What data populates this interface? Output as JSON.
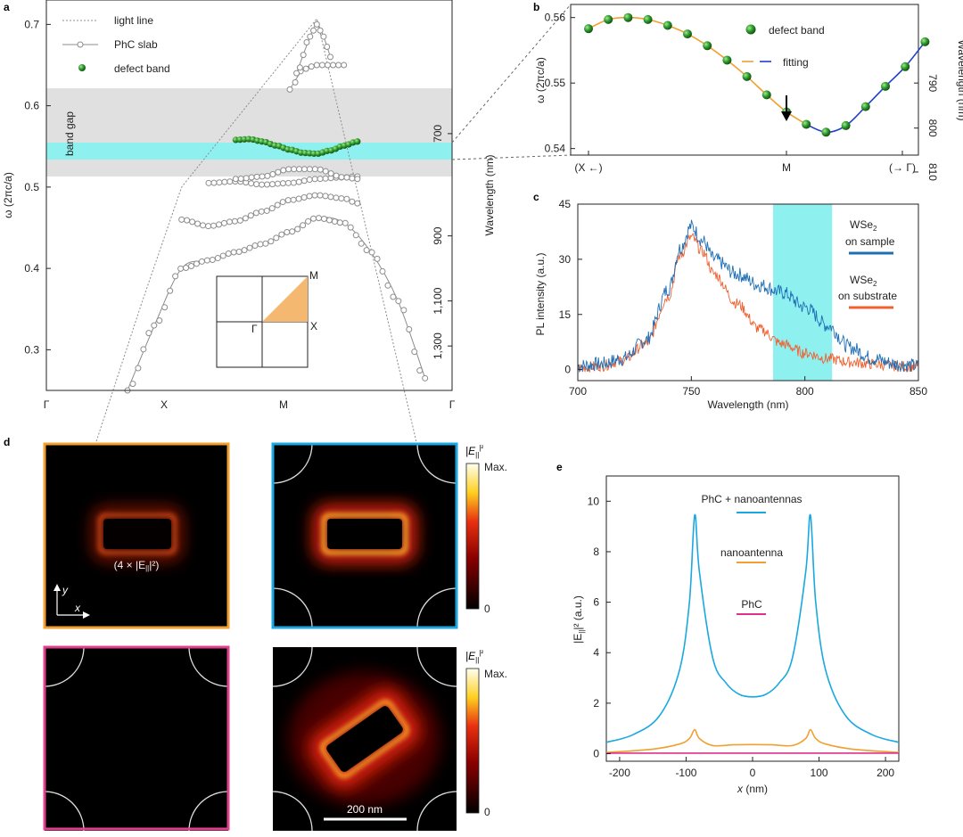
{
  "colors": {
    "gray_curve": "#8c8c8c",
    "defect_green": "#2e8b2e",
    "fit_orange": "#f0a030",
    "fit_blue": "#1f3fc8",
    "cyan_band": "#8ff0f0",
    "gray_band": "#e0e0e0",
    "wse2_sample": "#1f6fb4",
    "wse2_substrate": "#f06030",
    "phc_nano": "#1aa8e0",
    "nano": "#f0a030",
    "phc": "#e0308c",
    "frame_orange": "#f0a030",
    "frame_blue": "#1aa8e0",
    "frame_pink": "#e0408c"
  },
  "panel_a": {
    "letter": "a",
    "legend": [
      "light line",
      "PhC slab",
      "defect band"
    ],
    "band_gap_label": "band gap",
    "ylabel": "ω (2πc/a)",
    "ylabel_right": "Wavelength (nm)",
    "yticks": [
      "0.3",
      "0.4",
      "0.5",
      "0.6",
      "0.7"
    ],
    "yticks_right": [
      "700",
      "900",
      "1,100",
      "1,300"
    ],
    "xticks": [
      "Γ",
      "X",
      "M",
      "Γ"
    ],
    "bz_labels": [
      "M",
      "X",
      "Γ"
    ]
  },
  "panel_b": {
    "letter": "b",
    "legend": [
      "defect band",
      "fitting"
    ],
    "ylabel": "ω (2πc/a)",
    "ylabel_right": "Wavelength (nm)",
    "yticks": [
      "0.54",
      "0.55",
      "0.56"
    ],
    "yticks_right": [
      "790",
      "800",
      "810"
    ],
    "xticks": [
      "(X ←)",
      "M",
      "(→ Γ)"
    ]
  },
  "panel_c": {
    "letter": "c",
    "legend_sample": [
      "WSe",
      "2",
      "on sample"
    ],
    "legend_substrate": [
      "WSe",
      "2",
      "on substrate"
    ],
    "ylabel": "PL intensity (a.u.)",
    "xlabel": "Wavelength (nm)",
    "yticks": [
      "0",
      "15",
      "30",
      "45"
    ],
    "xticks": [
      "700",
      "750",
      "800",
      "850"
    ]
  },
  "panel_d": {
    "letter": "d",
    "annotation": "(4 × |E",
    "annotation_sub": "||",
    "annotation_end": "|²)",
    "axis_y": "y",
    "axis_x": "x",
    "colorbar_title": "|E",
    "colorbar_sub": "||",
    "colorbar_sup": "|²",
    "colorbar_max": "Max.",
    "colorbar_min": "0",
    "scalebar": "200 nm"
  },
  "panel_e": {
    "letter": "e",
    "legend": [
      "PhC + nanoantennas",
      "nanoantenna",
      "PhC"
    ],
    "ylabel_pre": "|E",
    "ylabel_sub": "||",
    "ylabel_post": "|² (a.u.)",
    "xlabel_pre": "x",
    "xlabel_post": " (nm)",
    "yticks": [
      "0",
      "2",
      "4",
      "6",
      "8",
      "10"
    ],
    "xticks": [
      "-200",
      "-100",
      "0",
      "100",
      "200"
    ]
  },
  "chart_data": [
    {
      "panel": "a",
      "type": "line",
      "xlabel": "",
      "ylabel": "ω (2πc/a)",
      "ylim": [
        0.25,
        0.73
      ],
      "x_categories": [
        "Γ",
        "X",
        "M",
        "Γ"
      ],
      "shaded_regions": [
        {
          "name": "band gap",
          "ylim": [
            0.519,
            0.63
          ]
        },
        {
          "name": "defect",
          "ylim": [
            0.541,
            0.561
          ]
        }
      ],
      "series": [
        {
          "name": "light line",
          "points": [
            [
              0,
              0.0
            ],
            [
              0.7,
              0.355
            ],
            [
              1.0,
              0.5
            ],
            [
              2.0,
              0.707
            ],
            [
              3.0,
              0.0
            ]
          ]
        },
        {
          "name": "PhC slab",
          "bands": [
            {
              "x": [
                0.6,
                0.8,
                1.0,
                1.2,
                1.4,
                1.6,
                1.8,
                2.0,
                2.2,
                2.4,
                2.6,
                2.8
              ],
              "y": [
                0.25,
                0.33,
                0.4,
                0.41,
                0.42,
                0.43,
                0.445,
                0.462,
                0.456,
                0.42,
                0.36,
                0.265
              ]
            },
            {
              "x": [
                1.0,
                1.2,
                1.4,
                1.6,
                1.8,
                2.0,
                2.2,
                2.3
              ],
              "y": [
                0.46,
                0.452,
                0.458,
                0.47,
                0.484,
                0.49,
                0.486,
                0.48
              ]
            },
            {
              "x": [
                1.2,
                1.4,
                1.6,
                1.8,
                2.0,
                2.2,
                2.3
              ],
              "y": [
                0.505,
                0.507,
                0.503,
                0.505,
                0.51,
                0.512,
                0.513
              ]
            },
            {
              "x": [
                1.4,
                1.6,
                1.8,
                2.0,
                2.2,
                2.3
              ],
              "y": [
                0.51,
                0.513,
                0.522,
                0.522,
                0.512,
                0.51
              ]
            },
            {
              "x": [
                1.8,
                1.9,
                2.0,
                2.1,
                2.2
              ],
              "y": [
                0.62,
                0.645,
                0.65,
                0.65,
                0.65
              ]
            },
            {
              "x": [
                1.85,
                1.95,
                2.0,
                2.05,
                2.1
              ],
              "y": [
                0.64,
                0.685,
                0.7,
                0.685,
                0.66
              ]
            }
          ]
        },
        {
          "name": "defect band",
          "points": [
            [
              1.4,
              0.558
            ],
            [
              1.5,
              0.559
            ],
            [
              1.6,
              0.556
            ],
            [
              1.7,
              0.551
            ],
            [
              1.8,
              0.546
            ],
            [
              1.9,
              0.542
            ],
            [
              2.0,
              0.541
            ],
            [
              2.1,
              0.545
            ],
            [
              2.2,
              0.551
            ],
            [
              2.3,
              0.556
            ]
          ]
        }
      ]
    },
    {
      "panel": "b",
      "type": "scatter",
      "ylabel": "ω (2πc/a)",
      "ylim": [
        0.539,
        0.562
      ],
      "x_categories": [
        "(X ←)",
        "M",
        "(→ Γ)"
      ],
      "series": [
        {
          "name": "defect band",
          "x": [
            -1.0,
            -0.9,
            -0.8,
            -0.7,
            -0.6,
            -0.5,
            -0.4,
            -0.3,
            -0.2,
            -0.1,
            0.0,
            0.1,
            0.2,
            0.3,
            0.4,
            0.5,
            0.6,
            0.7
          ],
          "y": [
            0.5583,
            0.5597,
            0.56,
            0.5597,
            0.5588,
            0.5575,
            0.5557,
            0.5535,
            0.551,
            0.5482,
            0.5456,
            0.5437,
            0.5425,
            0.5435,
            0.5464,
            0.5495,
            0.5525,
            0.5563
          ]
        },
        {
          "name": "fitting",
          "note": "smooth curve, orange left of M, blue right of M"
        }
      ]
    },
    {
      "panel": "c",
      "type": "line",
      "xlabel": "Wavelength (nm)",
      "ylabel": "PL intensity (a.u.)",
      "xlim": [
        700,
        850
      ],
      "ylim": [
        -3,
        45
      ],
      "highlight_band": [
        786,
        812
      ],
      "series": [
        {
          "name": "WSe2 on sample",
          "x": [
            700,
            710,
            720,
            730,
            740,
            745,
            750,
            755,
            760,
            770,
            780,
            790,
            800,
            810,
            820,
            830,
            840,
            850
          ],
          "y": [
            1,
            1.5,
            3,
            8,
            22,
            33,
            39,
            35,
            30,
            26,
            23,
            21,
            17,
            12,
            6,
            3,
            1.5,
            1
          ]
        },
        {
          "name": "WSe2 on substrate",
          "x": [
            700,
            710,
            720,
            730,
            740,
            745,
            750,
            755,
            760,
            770,
            780,
            790,
            800,
            810,
            820,
            830,
            840,
            850
          ],
          "y": [
            0.5,
            1,
            2.5,
            7,
            20,
            31,
            36,
            32,
            26,
            18,
            11,
            7,
            4.5,
            3,
            2,
            1.5,
            1,
            0.8
          ]
        }
      ]
    },
    {
      "panel": "e",
      "type": "line",
      "xlabel": "x (nm)",
      "ylabel": "|E||| ² (a.u.)",
      "xlim": [
        -220,
        220
      ],
      "ylim": [
        -0.3,
        11
      ],
      "series": [
        {
          "name": "PhC + nanoantennas",
          "x": [
            -220,
            -180,
            -140,
            -110,
            -95,
            -87,
            -80,
            -60,
            -40,
            -20,
            0,
            20,
            40,
            60,
            80,
            87,
            95,
            110,
            140,
            180,
            220
          ],
          "y": [
            0.45,
            0.75,
            1.5,
            3.3,
            6.0,
            9.45,
            7.2,
            3.8,
            2.8,
            2.35,
            2.25,
            2.35,
            2.8,
            3.8,
            7.2,
            9.45,
            6.0,
            3.3,
            1.5,
            0.75,
            0.45
          ]
        },
        {
          "name": "nanoantenna",
          "x": [
            -220,
            -150,
            -110,
            -95,
            -87,
            -80,
            -60,
            -30,
            0,
            30,
            60,
            80,
            87,
            95,
            110,
            150,
            220
          ],
          "y": [
            0.05,
            0.18,
            0.38,
            0.6,
            0.95,
            0.6,
            0.32,
            0.35,
            0.36,
            0.35,
            0.32,
            0.6,
            0.95,
            0.6,
            0.38,
            0.18,
            0.05
          ]
        },
        {
          "name": "PhC",
          "x": [
            -220,
            -110,
            0,
            110,
            220
          ],
          "y": [
            0.02,
            0.02,
            0.02,
            0.02,
            0.02
          ]
        }
      ]
    }
  ]
}
